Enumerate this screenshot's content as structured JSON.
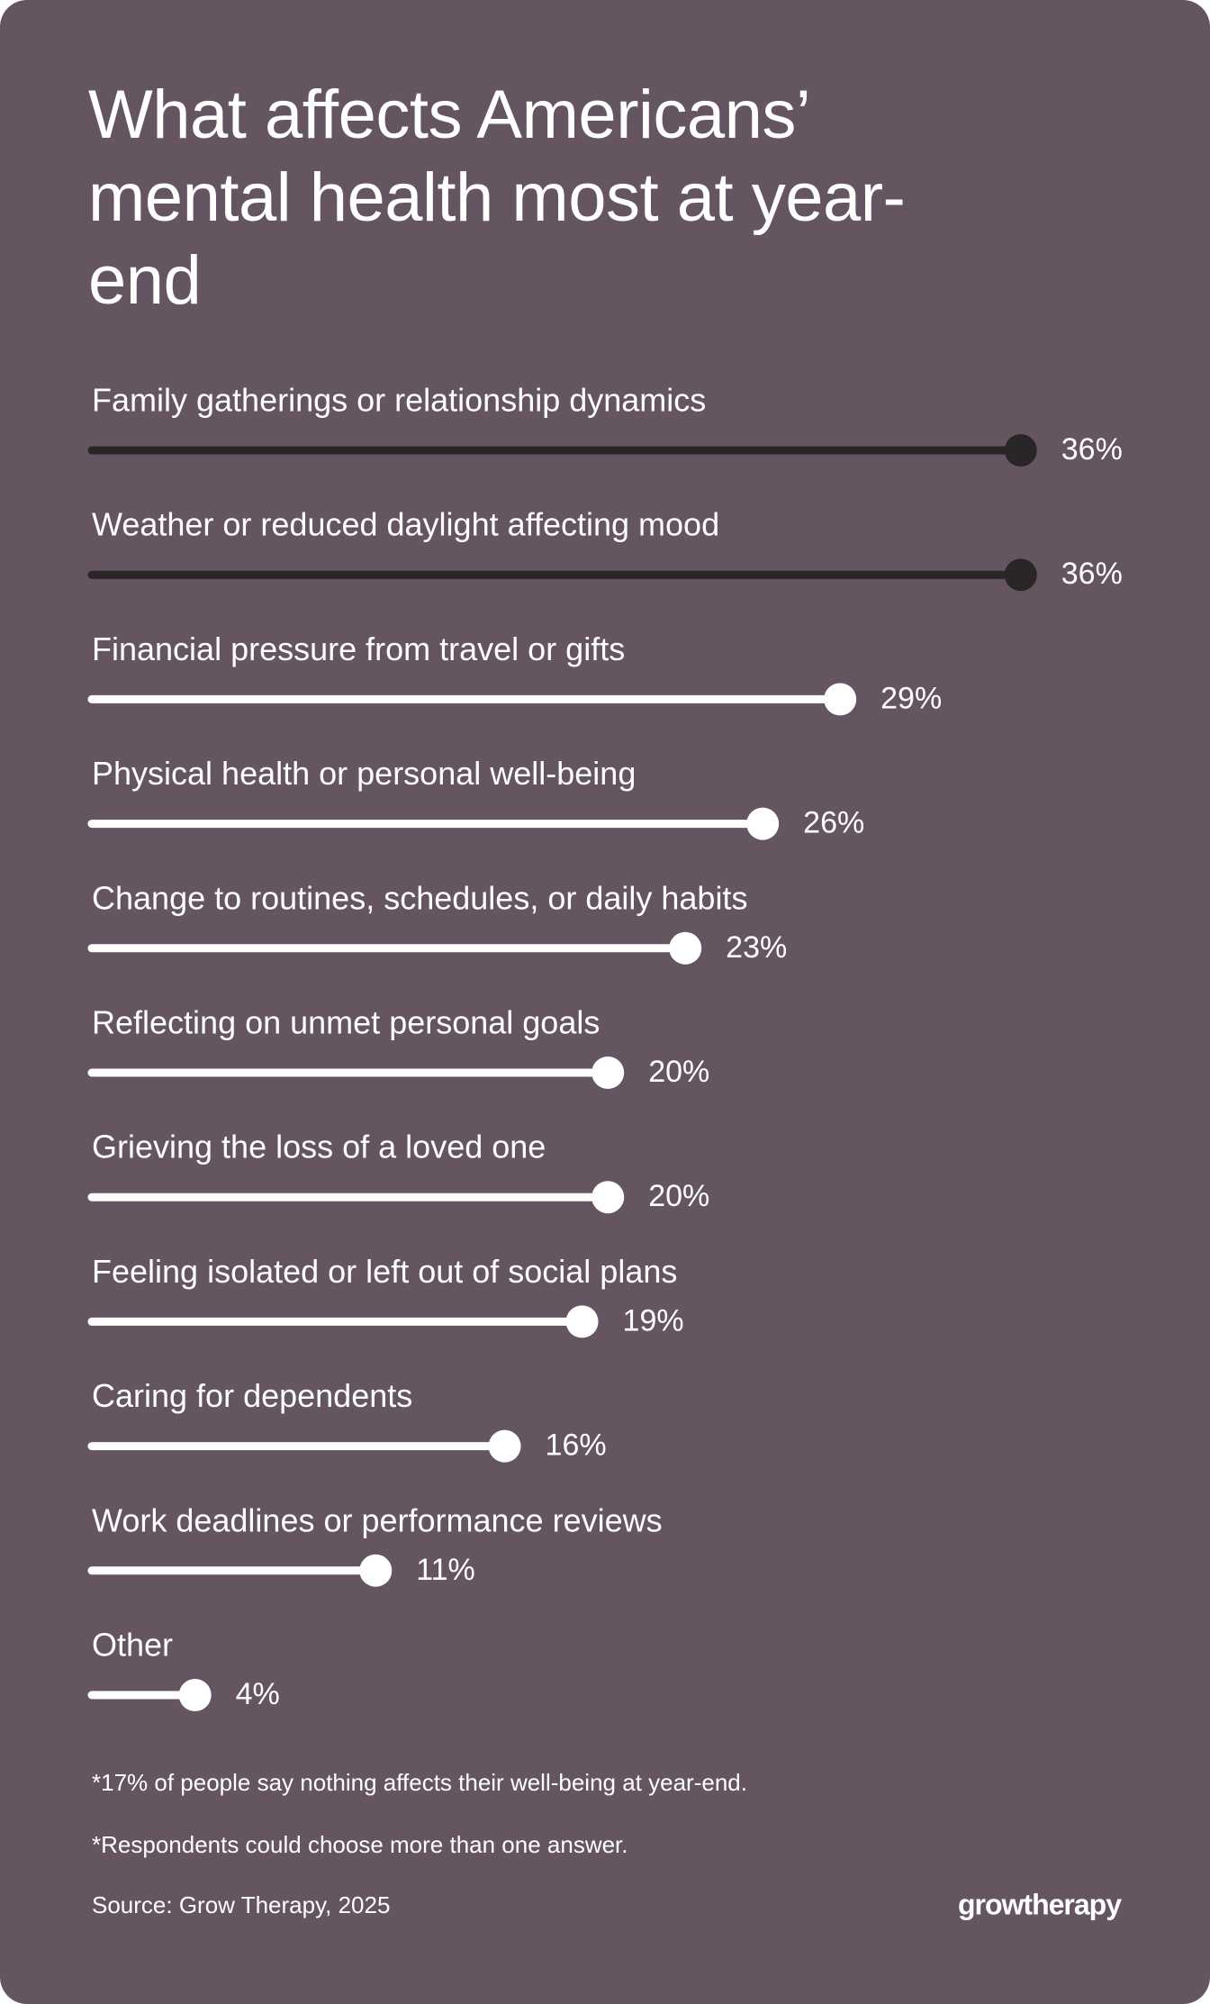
{
  "chart_data": {
    "type": "lollipop",
    "title": "What affects Americans’ mental health most at year-end",
    "categories": [
      "Family gatherings or relationship dynamics",
      "Weather or reduced daylight affecting mood",
      "Financial pressure from travel or gifts",
      "Physical health or personal well-being",
      "Change to routines, schedules, or daily habits",
      "Reflecting on unmet personal goals",
      "Grieving the loss of a loved one",
      "Feeling isolated or left out of social plans",
      "Caring for dependents",
      "Work deadlines or performance reviews",
      "Other"
    ],
    "values": [
      36,
      36,
      29,
      26,
      23,
      20,
      20,
      19,
      16,
      11,
      4
    ],
    "value_labels": [
      "36%",
      "36%",
      "29%",
      "26%",
      "23%",
      "20%",
      "20%",
      "19%",
      "16%",
      "11%",
      "4%"
    ],
    "colors": [
      "#2a2527",
      "#2a2527",
      "#ffffff",
      "#ffffff",
      "#ffffff",
      "#ffffff",
      "#ffffff",
      "#ffffff",
      "#ffffff",
      "#ffffff",
      "#ffffff"
    ],
    "notes": [
      "*17% of people say nothing affects their well-being at year-end.",
      "*Respondents could choose more than one answer."
    ],
    "source": "Source: Grow Therapy, 2025",
    "brand": "growtherapy"
  }
}
